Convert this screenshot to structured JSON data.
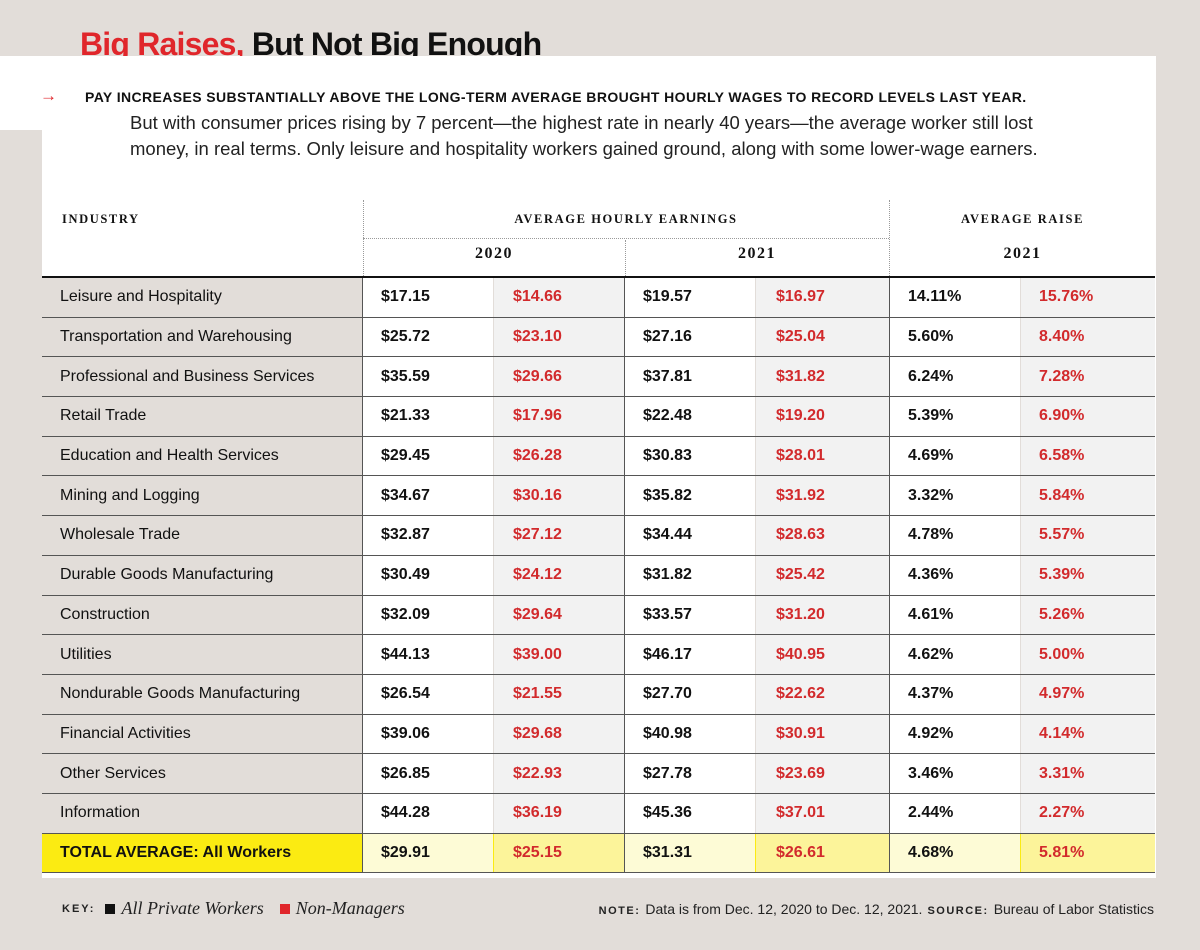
{
  "title": {
    "red": "Big Raises,",
    "dark": "But Not Big Enough"
  },
  "intro": {
    "arrow": "→",
    "lead": "PAY INCREASES SUBSTANTIALLY ABOVE THE LONG-TERM AVERAGE BROUGHT HOURLY WAGES TO RECORD LEVELS LAST YEAR.",
    "line1": "But with consumer prices rising by 7 percent—the highest rate in nearly 40 years—the average worker still lost",
    "line2": "money, in real terms. Only leisure and hospitality workers gained ground, along with some lower-wage earners."
  },
  "table": {
    "header": {
      "industry": "INDUSTRY",
      "earnings": "AVERAGE HOURLY EARNINGS",
      "raise": "AVERAGE RAISE",
      "year_2020": "2020",
      "year_2021": "2021",
      "year_raise": "2021"
    },
    "rows": [
      {
        "industry": "Leisure and Hospitality",
        "all_2020": "$17.15",
        "nm_2020": "$14.66",
        "all_2021": "$19.57",
        "nm_2021": "$16.97",
        "raise_all": "14.11%",
        "raise_nm": "15.76%"
      },
      {
        "industry": "Transportation and Warehousing",
        "all_2020": "$25.72",
        "nm_2020": "$23.10",
        "all_2021": "$27.16",
        "nm_2021": "$25.04",
        "raise_all": "5.60%",
        "raise_nm": "8.40%"
      },
      {
        "industry": "Professional and Business Services",
        "all_2020": "$35.59",
        "nm_2020": "$29.66",
        "all_2021": "$37.81",
        "nm_2021": "$31.82",
        "raise_all": "6.24%",
        "raise_nm": "7.28%"
      },
      {
        "industry": "Retail Trade",
        "all_2020": "$21.33",
        "nm_2020": "$17.96",
        "all_2021": "$22.48",
        "nm_2021": "$19.20",
        "raise_all": "5.39%",
        "raise_nm": "6.90%"
      },
      {
        "industry": "Education and Health Services",
        "all_2020": "$29.45",
        "nm_2020": "$26.28",
        "all_2021": "$30.83",
        "nm_2021": "$28.01",
        "raise_all": "4.69%",
        "raise_nm": "6.58%"
      },
      {
        "industry": "Mining and Logging",
        "all_2020": "$34.67",
        "nm_2020": "$30.16",
        "all_2021": "$35.82",
        "nm_2021": "$31.92",
        "raise_all": "3.32%",
        "raise_nm": "5.84%"
      },
      {
        "industry": "Wholesale Trade",
        "all_2020": "$32.87",
        "nm_2020": "$27.12",
        "all_2021": "$34.44",
        "nm_2021": "$28.63",
        "raise_all": "4.78%",
        "raise_nm": "5.57%"
      },
      {
        "industry": "Durable Goods Manufacturing",
        "all_2020": "$30.49",
        "nm_2020": "$24.12",
        "all_2021": "$31.82",
        "nm_2021": "$25.42",
        "raise_all": "4.36%",
        "raise_nm": "5.39%"
      },
      {
        "industry": "Construction",
        "all_2020": "$32.09",
        "nm_2020": "$29.64",
        "all_2021": "$33.57",
        "nm_2021": "$31.20",
        "raise_all": "4.61%",
        "raise_nm": "5.26%"
      },
      {
        "industry": "Utilities",
        "all_2020": "$44.13",
        "nm_2020": "$39.00",
        "all_2021": "$46.17",
        "nm_2021": "$40.95",
        "raise_all": "4.62%",
        "raise_nm": "5.00%"
      },
      {
        "industry": "Nondurable Goods Manufacturing",
        "all_2020": "$26.54",
        "nm_2020": "$21.55",
        "all_2021": "$27.70",
        "nm_2021": "$22.62",
        "raise_all": "4.37%",
        "raise_nm": "4.97%"
      },
      {
        "industry": "Financial Activities",
        "all_2020": "$39.06",
        "nm_2020": "$29.68",
        "all_2021": "$40.98",
        "nm_2021": "$30.91",
        "raise_all": "4.92%",
        "raise_nm": "4.14%"
      },
      {
        "industry": "Other Services",
        "all_2020": "$26.85",
        "nm_2020": "$22.93",
        "all_2021": "$27.78",
        "nm_2021": "$23.69",
        "raise_all": "3.46%",
        "raise_nm": "3.31%"
      },
      {
        "industry": "Information",
        "all_2020": "$44.28",
        "nm_2020": "$36.19",
        "all_2021": "$45.36",
        "nm_2021": "$37.01",
        "raise_all": "2.44%",
        "raise_nm": "2.27%"
      }
    ],
    "total": {
      "industry": "TOTAL AVERAGE: All Workers",
      "all_2020": "$29.91",
      "nm_2020": "$25.15",
      "all_2021": "$31.31",
      "nm_2021": "$26.61",
      "raise_all": "4.68%",
      "raise_nm": "5.81%"
    }
  },
  "key": {
    "label": "KEY:",
    "all_workers": "All Private Workers",
    "non_managers": "Non-Managers",
    "colors": {
      "all": "#111111",
      "non_managers": "#e0262b"
    }
  },
  "note": {
    "note_label": "NOTE:",
    "note_text": "Data is from Dec. 12, 2020 to Dec. 12, 2021.",
    "source_label": "SOURCE:",
    "source_text": "Bureau of Labor Statistics"
  }
}
